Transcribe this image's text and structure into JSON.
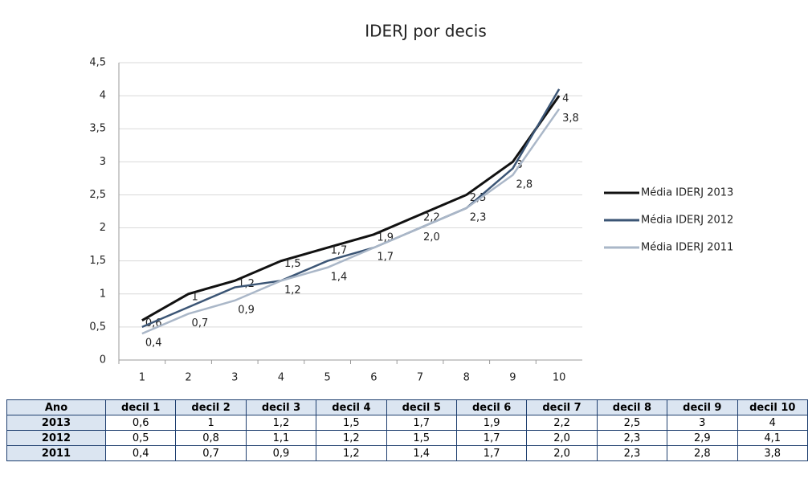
{
  "chart_data": {
    "type": "line",
    "title": "IDERJ por decis",
    "categories": [
      1,
      2,
      3,
      4,
      5,
      6,
      7,
      8,
      9,
      10
    ],
    "ylim": [
      0,
      4.5
    ],
    "yticks": [
      0,
      {
        "value": 0.5,
        "label": "0,5"
      },
      1,
      {
        "value": 1.5,
        "label": "1,5"
      },
      2,
      {
        "value": 2.5,
        "label": "2,5"
      },
      3,
      {
        "value": 3.5,
        "label": "3,5"
      },
      4,
      {
        "value": 4.5,
        "label": "4,5"
      }
    ],
    "grid": true,
    "legend": "right",
    "series": [
      {
        "name": "Média IDERJ 2013",
        "color": "#111111",
        "values": [
          0.6,
          1,
          1.2,
          1.5,
          1.7,
          1.9,
          2.2,
          2.5,
          3,
          4
        ],
        "value_labels": [
          "0,6",
          "1",
          "1,2",
          "1,5",
          "1,7",
          "1,9",
          "2,2",
          "2,5",
          "3",
          "4"
        ]
      },
      {
        "name": "Média IDERJ 2012",
        "color": "#3b5575",
        "values": [
          0.5,
          0.8,
          1.1,
          1.2,
          1.5,
          1.7,
          2.0,
          2.3,
          2.9,
          4.1
        ]
      },
      {
        "name": "Média IDERJ 2011",
        "color": "#aab7c8",
        "values": [
          0.4,
          0.7,
          0.9,
          1.2,
          1.4,
          1.7,
          2.0,
          2.3,
          2.8,
          3.8
        ],
        "value_labels": [
          "0,4",
          "0,7",
          "0,9",
          "1,2",
          "1,4",
          "1,7",
          "2,0",
          "2,3",
          "2,8",
          "3,8"
        ]
      }
    ]
  },
  "table": {
    "header": [
      "Ano",
      "decil 1",
      "decil 2",
      "decil 3",
      "decil 4",
      "decil 5",
      "decil 6",
      "decil 7",
      "decil 8",
      "decil 9",
      "decil 10"
    ],
    "rows": [
      [
        "2013",
        "0,6",
        "1",
        "1,2",
        "1,5",
        "1,7",
        "1,9",
        "2,2",
        "2,5",
        "3",
        "4"
      ],
      [
        "2012",
        "0,5",
        "0,8",
        "1,1",
        "1,2",
        "1,5",
        "1,7",
        "2,0",
        "2,3",
        "2,9",
        "4,1"
      ],
      [
        "2011",
        "0,4",
        "0,7",
        "0,9",
        "1,2",
        "1,4",
        "1,7",
        "2,0",
        "2,3",
        "2,8",
        "3,8"
      ]
    ]
  }
}
